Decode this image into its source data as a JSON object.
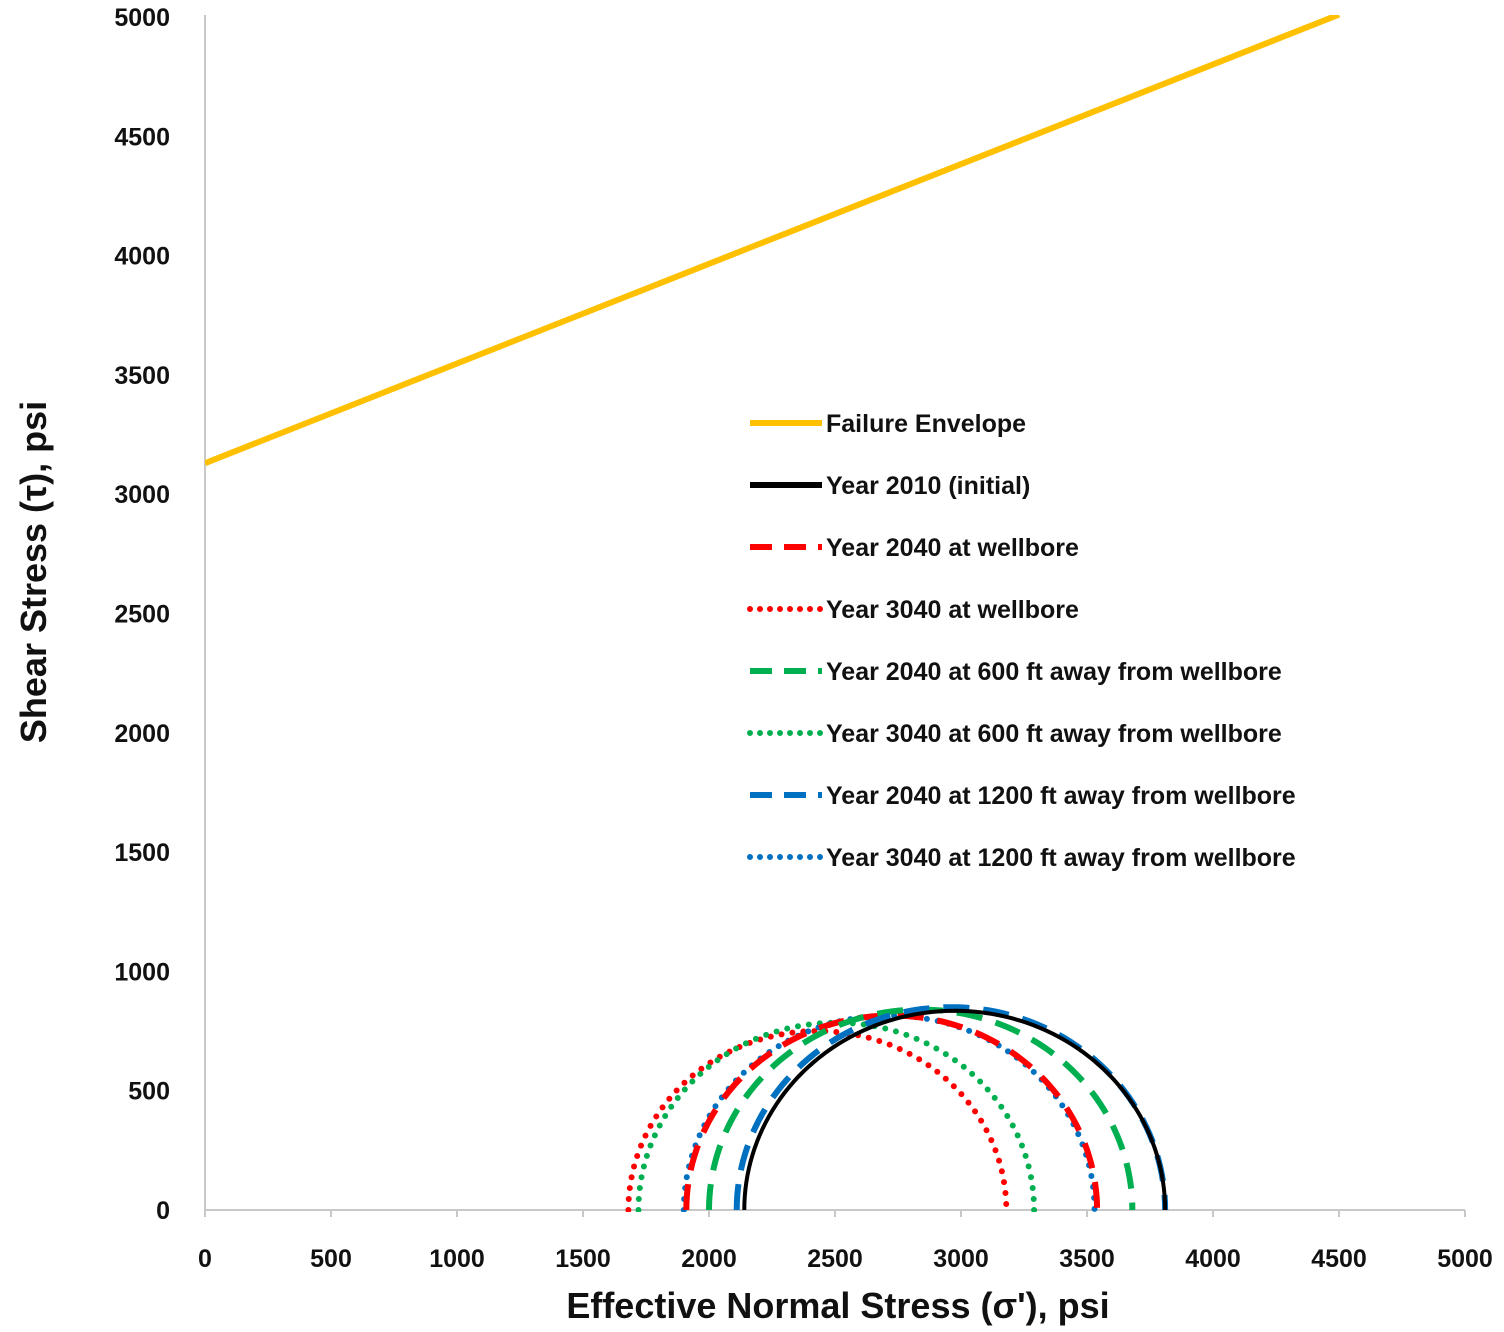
{
  "chart_data": {
    "type": "line",
    "title": "",
    "xlabel": "Effective Normal Stress (σ'), psi",
    "ylabel": "Shear Stress (τ), psi",
    "xlim": [
      0,
      5000
    ],
    "ylim": [
      0,
      5000
    ],
    "x_ticks": [
      0,
      500,
      1000,
      1500,
      2000,
      2500,
      3000,
      3500,
      4000,
      4500,
      5000
    ],
    "y_ticks": [
      0,
      500,
      1000,
      1500,
      2000,
      2500,
      3000,
      3500,
      4000,
      4500,
      5000
    ],
    "grid": false,
    "legend_position": "center-right",
    "failure_envelope": {
      "name": "Failure Envelope",
      "color": "#FFC000",
      "style": "solid",
      "x": [
        0,
        4500
      ],
      "y": [
        3130,
        5010
      ]
    },
    "series": [
      {
        "name": "Year 2010 (initial)",
        "color": "#000000",
        "style": "solid",
        "sigma_min": 2140,
        "sigma_max": 3810
      },
      {
        "name": "Year 2040 at wellbore",
        "color": "#FF0000",
        "style": "dashed",
        "sigma_min": 1910,
        "sigma_max": 3540
      },
      {
        "name": "Year 3040 at wellbore",
        "color": "#FF0000",
        "style": "dotted",
        "sigma_min": 1680,
        "sigma_max": 3180
      },
      {
        "name": "Year 2040 at 600 ft away from wellbore",
        "color": "#00B050",
        "style": "dashed",
        "sigma_min": 2000,
        "sigma_max": 3680
      },
      {
        "name": "Year 3040 at 600 ft away from wellbore",
        "color": "#00B050",
        "style": "dotted",
        "sigma_min": 1720,
        "sigma_max": 3290
      },
      {
        "name": "Year 2040 at 1200 ft away from wellbore",
        "color": "#0070C0",
        "style": "dashed",
        "sigma_min": 2110,
        "sigma_max": 3810
      },
      {
        "name": "Year 3040 at 1200 ft away from wellbore",
        "color": "#0070C0",
        "style": "dotted",
        "sigma_min": 1900,
        "sigma_max": 3530
      }
    ]
  }
}
